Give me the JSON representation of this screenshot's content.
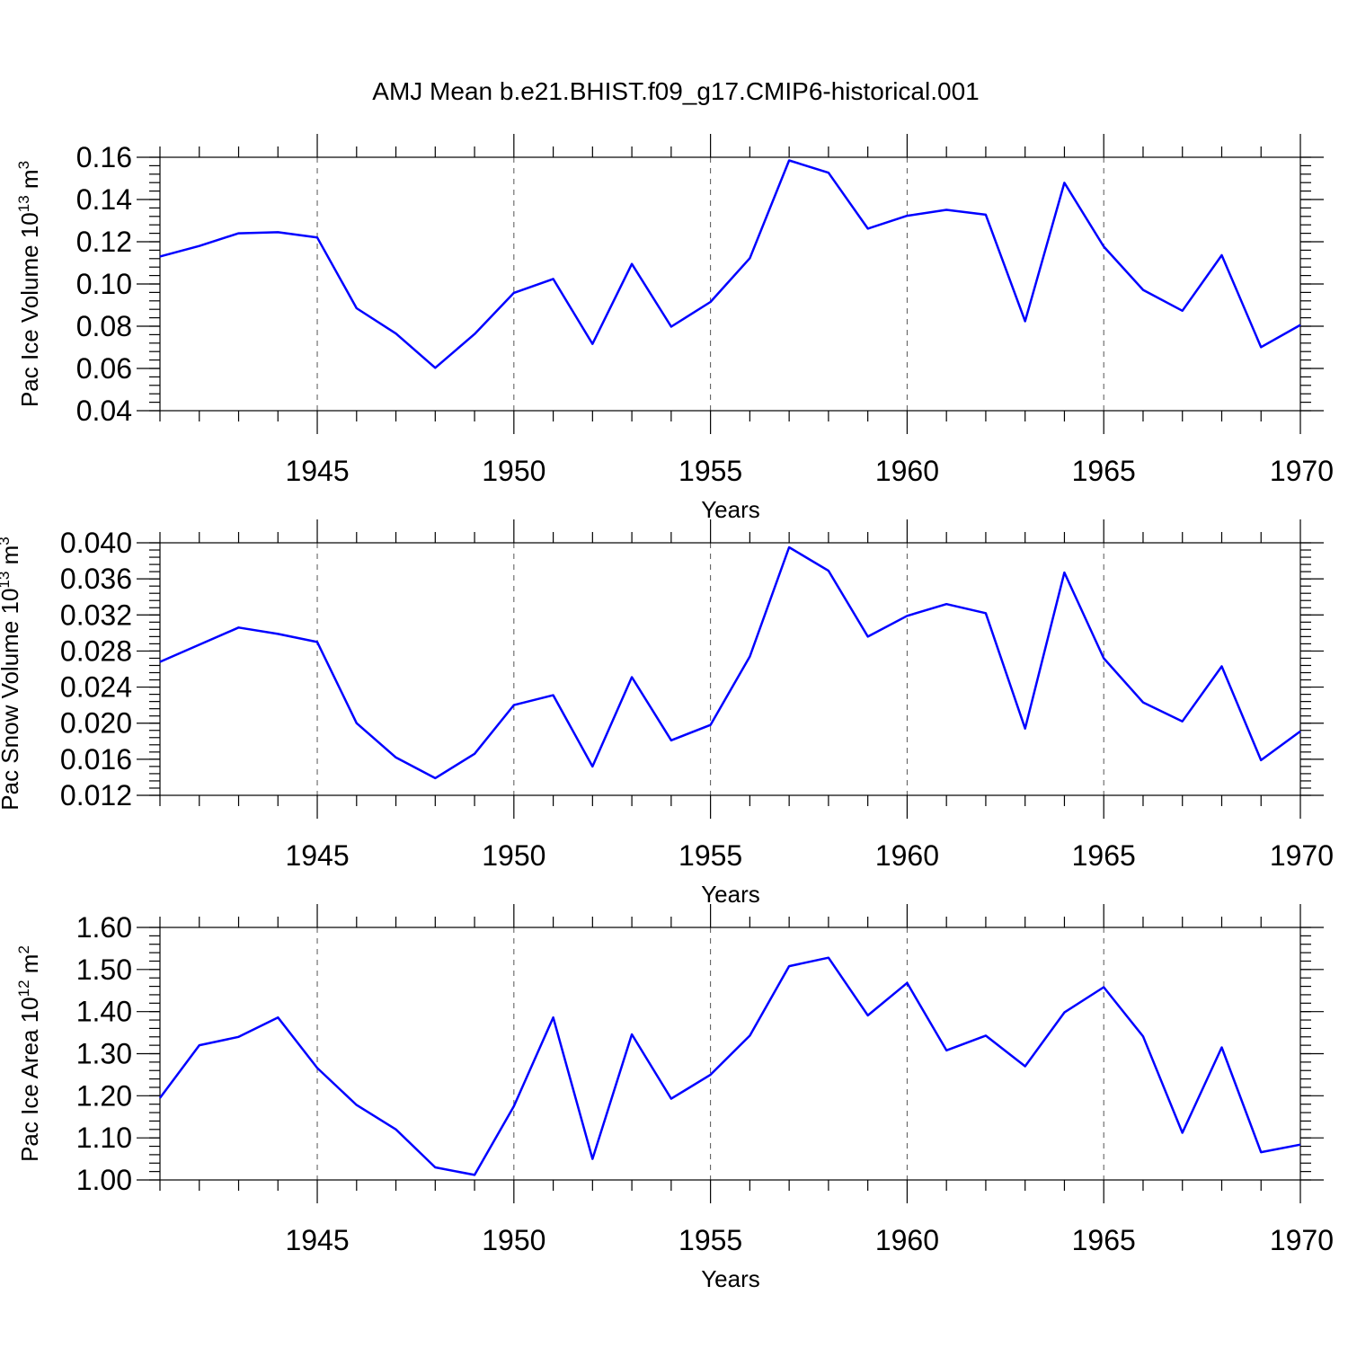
{
  "title": "AMJ Mean b.e21.BHIST.f09_g17.CMIP6-historical.001",
  "line_color": "#0000ff",
  "chart_data": [
    {
      "type": "line",
      "ylabel": "Pac Ice Volume 10",
      "ylabel_exp": "13",
      "ylabel_unit": " m",
      "ylabel_unit_exp": "3",
      "xlabel": "Years",
      "xlim": [
        1941,
        1970
      ],
      "ylim": [
        0.04,
        0.16
      ],
      "yticks": [
        0.04,
        0.06,
        0.08,
        0.1,
        0.12,
        0.14,
        0.16
      ],
      "ytick_labels": [
        "0.04",
        "0.06",
        "0.08",
        "0.10",
        "0.12",
        "0.14",
        "0.16"
      ],
      "yminor_step": 0.004,
      "xticks": [
        1945,
        1950,
        1955,
        1960,
        1965,
        1970
      ],
      "xtick_labels": [
        "1945",
        "1950",
        "1955",
        "1960",
        "1965",
        "1970"
      ],
      "grid": "vertical dashed at major x ticks",
      "x": [
        1941,
        1942,
        1943,
        1944,
        1945,
        1946,
        1947,
        1948,
        1949,
        1950,
        1951,
        1952,
        1953,
        1954,
        1955,
        1956,
        1957,
        1958,
        1959,
        1960,
        1961,
        1962,
        1963,
        1964,
        1965,
        1966,
        1967,
        1968,
        1969,
        1970
      ],
      "values": [
        0.113,
        0.118,
        0.124,
        0.1245,
        0.122,
        0.0885,
        0.0765,
        0.0603,
        0.0763,
        0.0958,
        0.1024,
        0.0716,
        0.1095,
        0.0798,
        0.0915,
        0.1122,
        0.1585,
        0.1527,
        0.1262,
        0.1323,
        0.1351,
        0.1328,
        0.0824,
        0.1479,
        0.1177,
        0.0972,
        0.0873,
        0.1136,
        0.0701,
        0.0806
      ]
    },
    {
      "type": "line",
      "ylabel": "Pac Snow Volume 10",
      "ylabel_exp": "13",
      "ylabel_unit": " m",
      "ylabel_unit_exp": "3",
      "xlabel": "Years",
      "xlim": [
        1941,
        1970
      ],
      "ylim": [
        0.012,
        0.04
      ],
      "yticks": [
        0.012,
        0.016,
        0.02,
        0.024,
        0.028,
        0.032,
        0.036,
        0.04
      ],
      "ytick_labels": [
        "0.012",
        "0.016",
        "0.020",
        "0.024",
        "0.028",
        "0.032",
        "0.036",
        "0.040"
      ],
      "yminor_step": 0.0008,
      "xticks": [
        1945,
        1950,
        1955,
        1960,
        1965,
        1970
      ],
      "xtick_labels": [
        "1945",
        "1950",
        "1955",
        "1960",
        "1965",
        "1970"
      ],
      "grid": "vertical dashed at major x ticks",
      "x": [
        1941,
        1942,
        1943,
        1944,
        1945,
        1946,
        1947,
        1948,
        1949,
        1950,
        1951,
        1952,
        1953,
        1954,
        1955,
        1956,
        1957,
        1958,
        1959,
        1960,
        1961,
        1962,
        1963,
        1964,
        1965,
        1966,
        1967,
        1968,
        1969,
        1970
      ],
      "values": [
        0.0268,
        0.0287,
        0.0306,
        0.0299,
        0.029,
        0.02,
        0.0162,
        0.0139,
        0.0166,
        0.022,
        0.0231,
        0.0152,
        0.0251,
        0.0181,
        0.0198,
        0.0274,
        0.0395,
        0.0369,
        0.0296,
        0.0319,
        0.0332,
        0.0322,
        0.0194,
        0.0367,
        0.0272,
        0.0223,
        0.0202,
        0.0263,
        0.0159,
        0.0191
      ]
    },
    {
      "type": "line",
      "ylabel": "Pac Ice Area 10",
      "ylabel_exp": "12",
      "ylabel_unit": " m",
      "ylabel_unit_exp": "2",
      "xlabel": "Years",
      "xlim": [
        1941,
        1970
      ],
      "ylim": [
        1.0,
        1.6
      ],
      "yticks": [
        1.0,
        1.1,
        1.2,
        1.3,
        1.4,
        1.5,
        1.6
      ],
      "ytick_labels": [
        "1.00",
        "1.10",
        "1.20",
        "1.30",
        "1.40",
        "1.50",
        "1.60"
      ],
      "yminor_step": 0.02,
      "xticks": [
        1945,
        1950,
        1955,
        1960,
        1965,
        1970
      ],
      "xtick_labels": [
        "1945",
        "1950",
        "1955",
        "1960",
        "1965",
        "1970"
      ],
      "grid": "vertical dashed at major x ticks",
      "x": [
        1941,
        1942,
        1943,
        1944,
        1945,
        1946,
        1947,
        1948,
        1949,
        1950,
        1951,
        1952,
        1953,
        1954,
        1955,
        1956,
        1957,
        1958,
        1959,
        1960,
        1961,
        1962,
        1963,
        1964,
        1965,
        1966,
        1967,
        1968,
        1969,
        1970
      ],
      "values": [
        1.195,
        1.32,
        1.34,
        1.386,
        1.266,
        1.178,
        1.12,
        1.03,
        1.012,
        1.175,
        1.386,
        1.05,
        1.346,
        1.193,
        1.25,
        1.343,
        1.508,
        1.528,
        1.391,
        1.468,
        1.308,
        1.343,
        1.27,
        1.398,
        1.458,
        1.341,
        1.112,
        1.315,
        1.066,
        1.084
      ]
    }
  ]
}
